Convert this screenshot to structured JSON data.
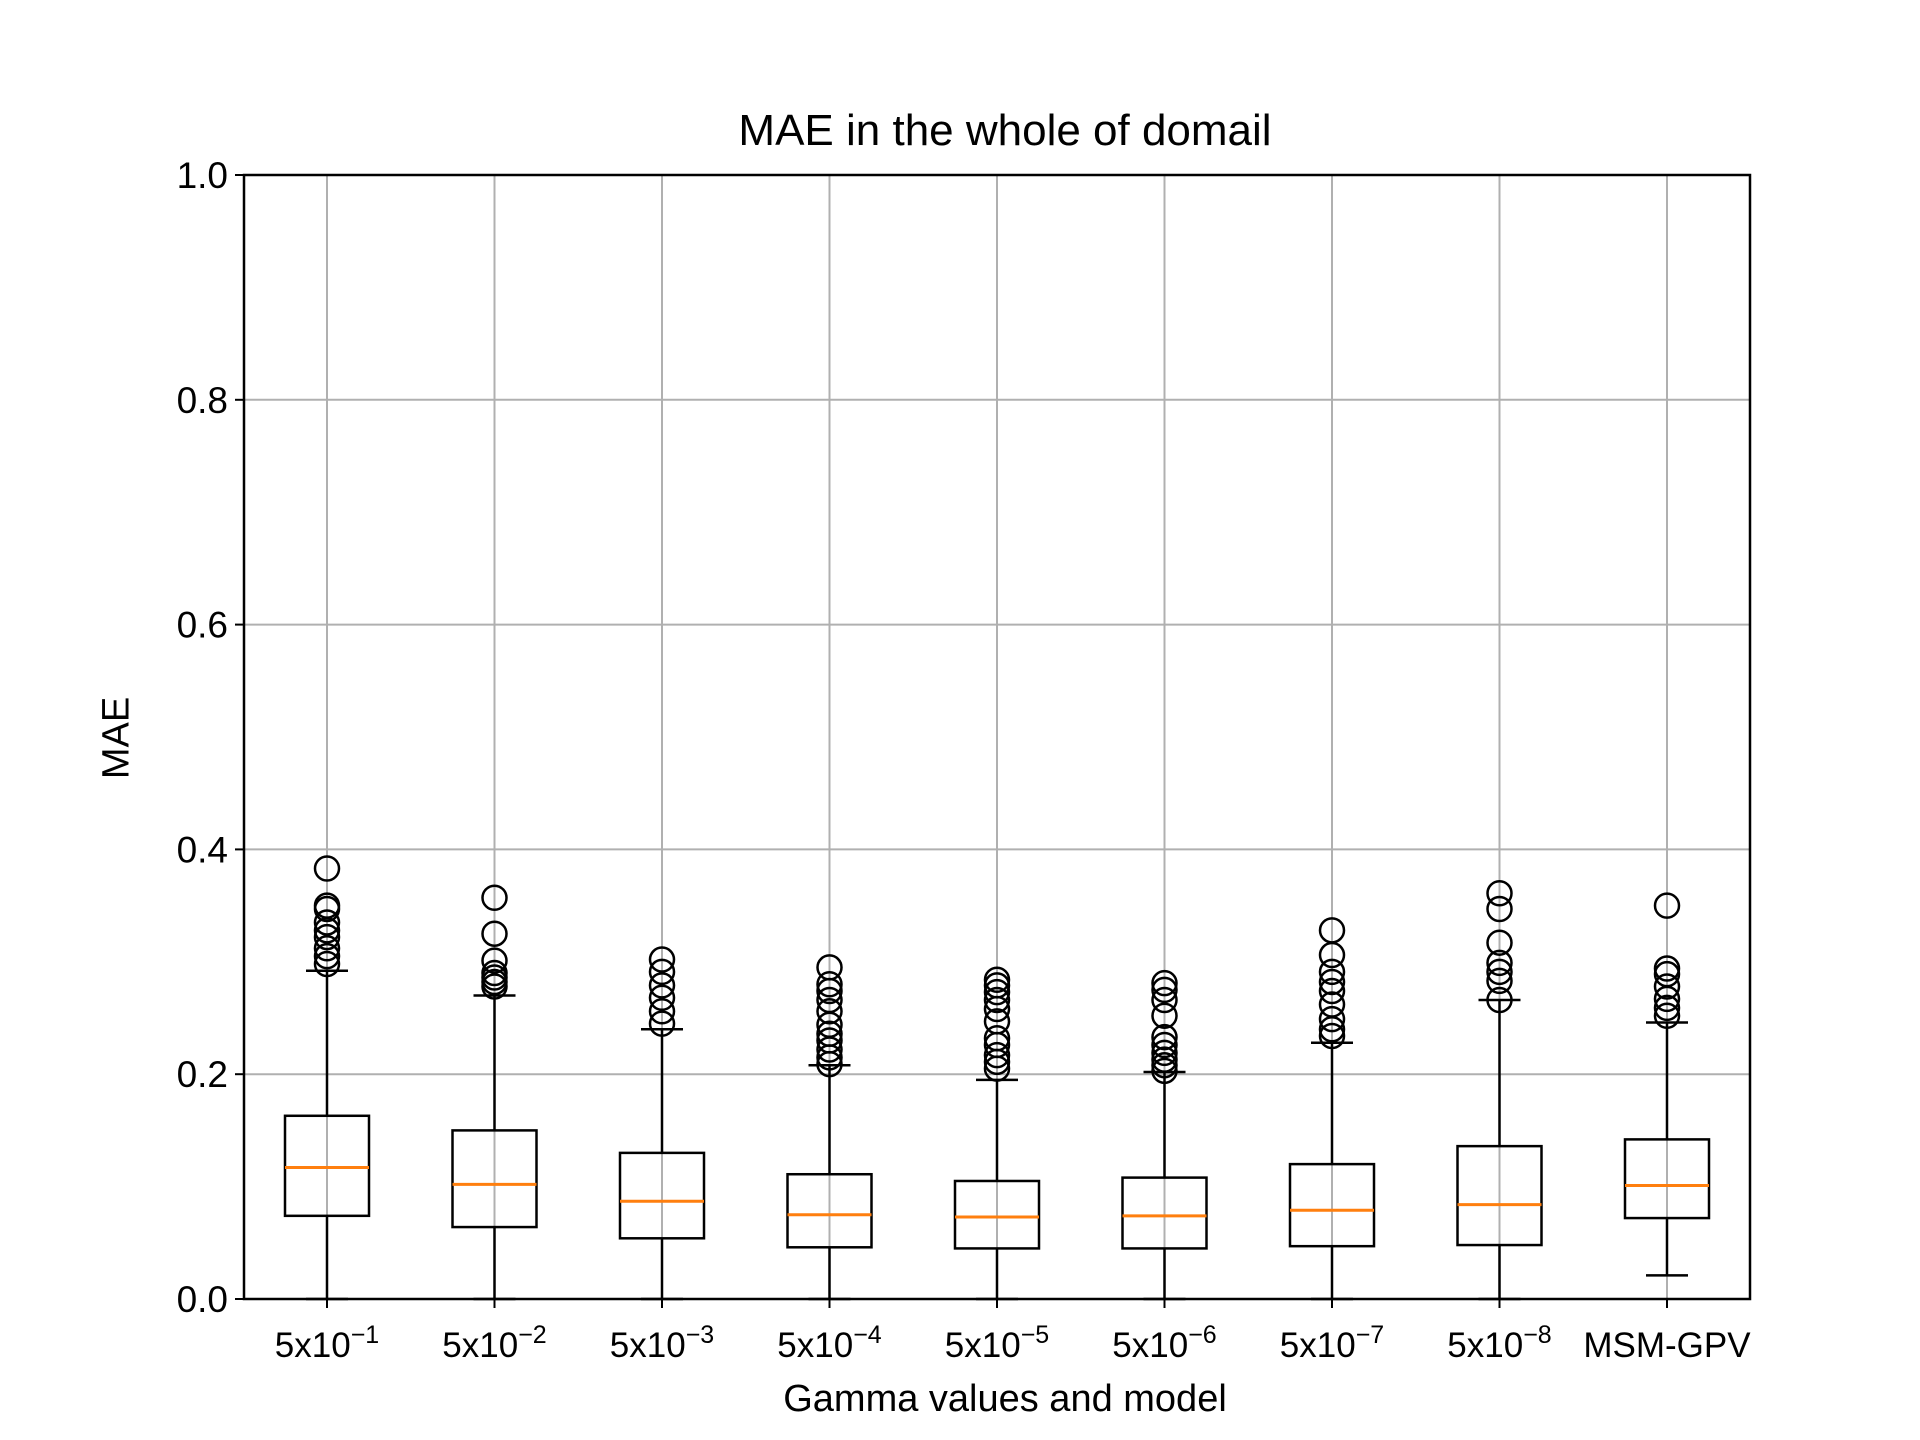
{
  "chart_data": {
    "type": "box",
    "title": "MAE in the whole of domail",
    "xlabel": "Gamma values and model",
    "ylabel": "MAE",
    "ylim": [
      0,
      1
    ],
    "yticks": [
      "0.0",
      "0.2",
      "0.4",
      "0.6",
      "0.8",
      "1.0"
    ],
    "grid": true,
    "categories": [
      {
        "base": "5x10",
        "exp": "−1"
      },
      {
        "base": "5x10",
        "exp": "−2"
      },
      {
        "base": "5x10",
        "exp": "−3"
      },
      {
        "base": "5x10",
        "exp": "−4"
      },
      {
        "base": "5x10",
        "exp": "−5"
      },
      {
        "base": "5x10",
        "exp": "−6"
      },
      {
        "base": "5x10",
        "exp": "−7"
      },
      {
        "base": "5x10",
        "exp": "−8"
      },
      {
        "base": "MSM-GPV",
        "exp": ""
      }
    ],
    "boxes": [
      {
        "whisker_low": 0.0,
        "q1": 0.074,
        "median": 0.117,
        "q3": 0.163,
        "whisker_high": 0.292,
        "outliers": [
          0.298,
          0.305,
          0.312,
          0.322,
          0.328,
          0.335,
          0.347,
          0.35,
          0.383
        ]
      },
      {
        "whisker_low": 0.0,
        "q1": 0.064,
        "median": 0.102,
        "q3": 0.15,
        "whisker_high": 0.27,
        "outliers": [
          0.278,
          0.282,
          0.286,
          0.29,
          0.301,
          0.325,
          0.357
        ]
      },
      {
        "whisker_low": 0.0,
        "q1": 0.054,
        "median": 0.087,
        "q3": 0.13,
        "whisker_high": 0.24,
        "outliers": [
          0.245,
          0.256,
          0.268,
          0.279,
          0.291,
          0.302
        ]
      },
      {
        "whisker_low": 0.0,
        "q1": 0.046,
        "median": 0.075,
        "q3": 0.111,
        "whisker_high": 0.208,
        "outliers": [
          0.209,
          0.215,
          0.222,
          0.23,
          0.236,
          0.244,
          0.256,
          0.266,
          0.274,
          0.28,
          0.295
        ]
      },
      {
        "whisker_low": 0.0,
        "q1": 0.045,
        "median": 0.073,
        "q3": 0.105,
        "whisker_high": 0.195,
        "outliers": [
          0.205,
          0.211,
          0.217,
          0.226,
          0.232,
          0.247,
          0.258,
          0.266,
          0.273,
          0.279,
          0.284
        ]
      },
      {
        "whisker_low": 0.0,
        "q1": 0.045,
        "median": 0.074,
        "q3": 0.108,
        "whisker_high": 0.202,
        "outliers": [
          0.203,
          0.208,
          0.213,
          0.219,
          0.226,
          0.233,
          0.252,
          0.266,
          0.275,
          0.281
        ]
      },
      {
        "whisker_low": 0.0,
        "q1": 0.047,
        "median": 0.079,
        "q3": 0.12,
        "whisker_high": 0.228,
        "outliers": [
          0.234,
          0.24,
          0.249,
          0.262,
          0.274,
          0.282,
          0.291,
          0.306,
          0.328
        ]
      },
      {
        "whisker_low": 0.0,
        "q1": 0.048,
        "median": 0.084,
        "q3": 0.136,
        "whisker_high": 0.266,
        "outliers": [
          0.266,
          0.283,
          0.291,
          0.299,
          0.317,
          0.347,
          0.361
        ]
      },
      {
        "whisker_low": 0.021,
        "q1": 0.072,
        "median": 0.101,
        "q3": 0.142,
        "whisker_high": 0.246,
        "outliers": [
          0.252,
          0.259,
          0.267,
          0.278,
          0.289,
          0.294,
          0.35
        ]
      }
    ],
    "colors": {
      "median": "#ff7f0e",
      "box": "#000000",
      "grid": "#b0b0b0"
    }
  }
}
